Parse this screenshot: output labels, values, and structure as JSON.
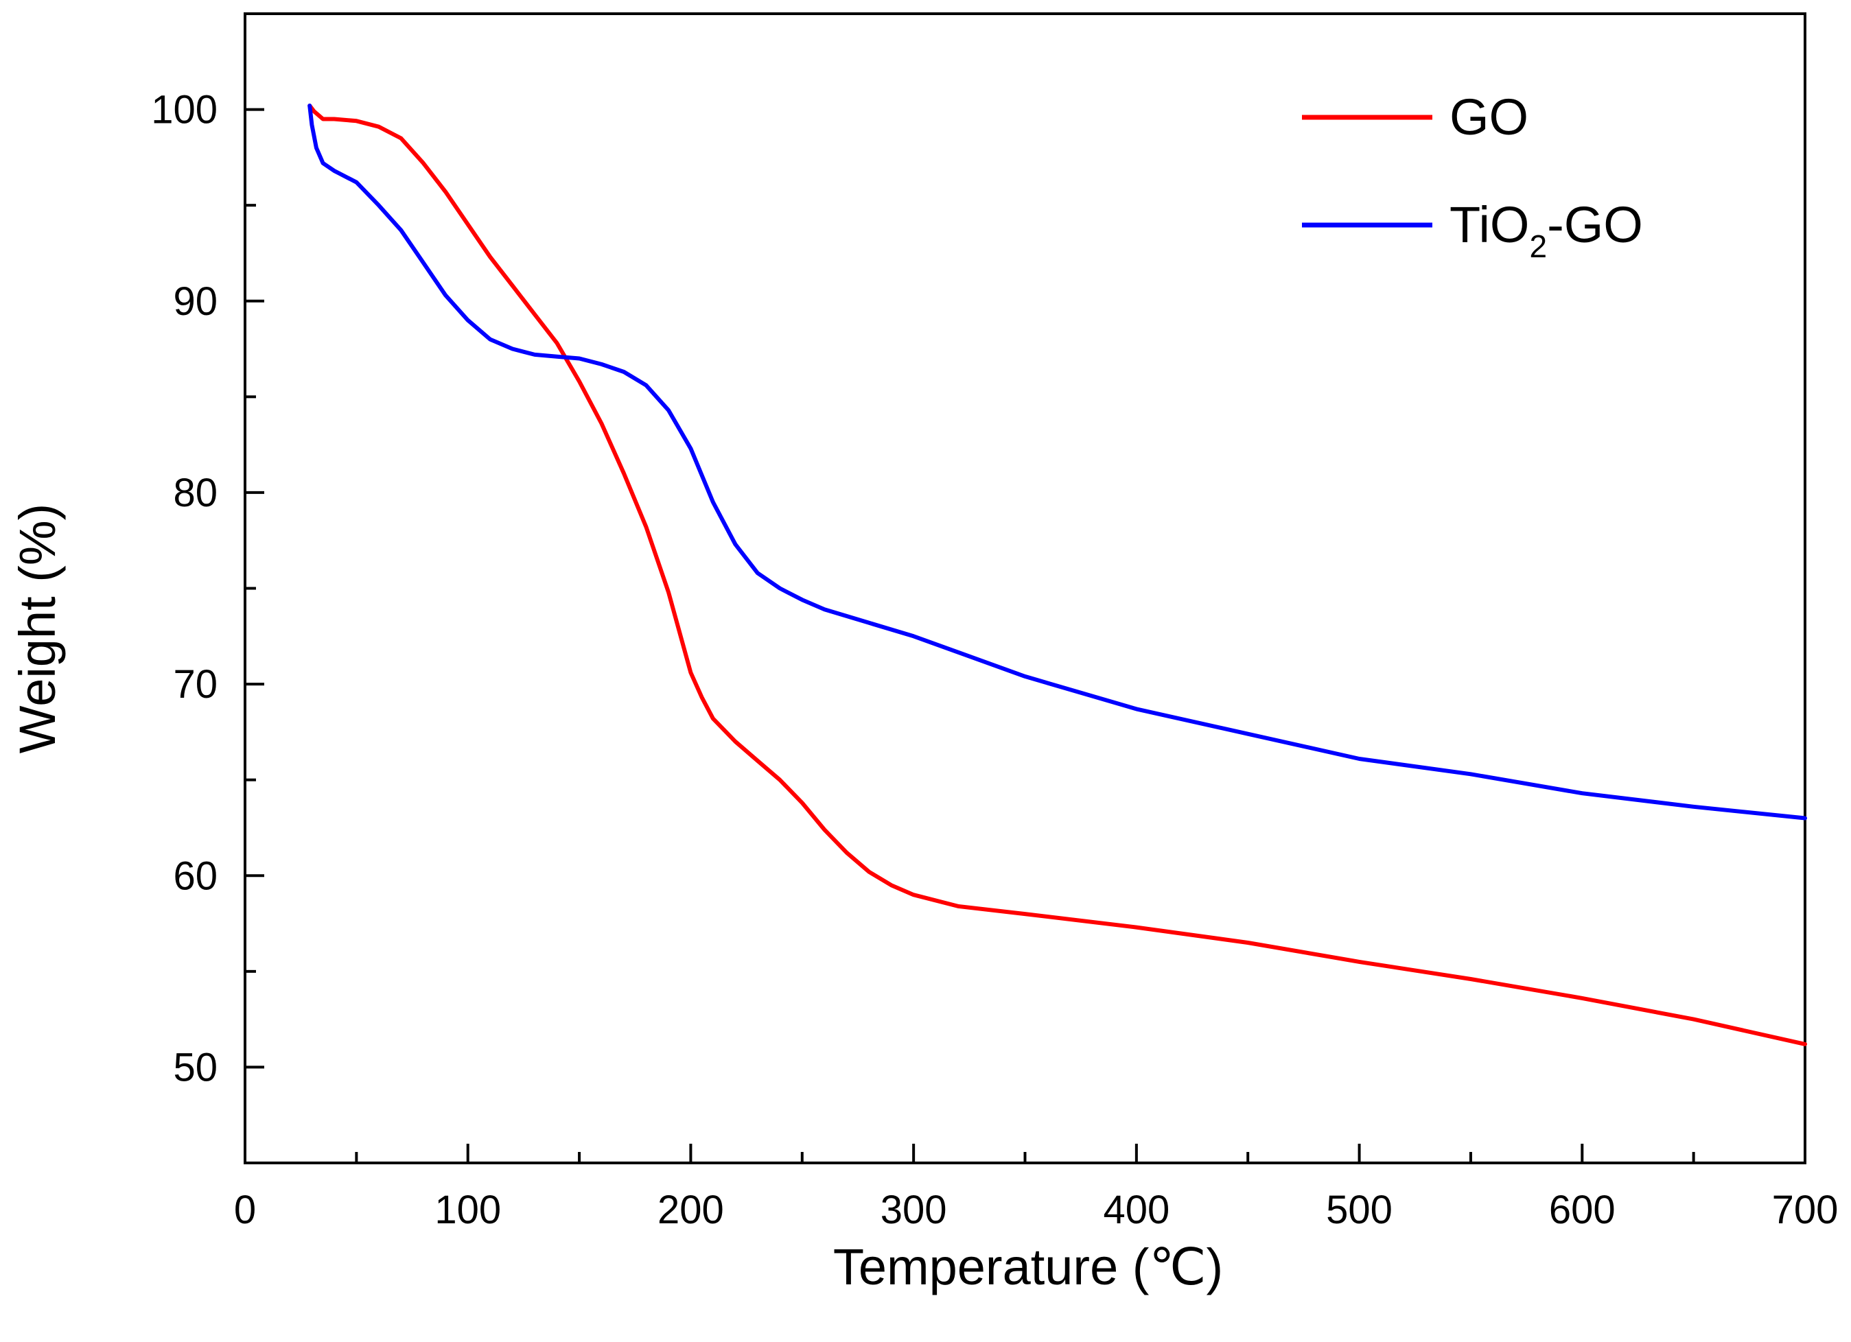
{
  "chart_data": {
    "type": "line",
    "title": "",
    "xlabel": "Temperature (℃)",
    "ylabel": "Weight (%)",
    "xlim": [
      0,
      700
    ],
    "ylim": [
      45,
      105
    ],
    "x_ticks": [
      0,
      100,
      200,
      300,
      400,
      500,
      600,
      700
    ],
    "y_ticks": [
      50,
      60,
      70,
      80,
      90,
      100
    ],
    "x_tick_labels": [
      "0",
      "100",
      "200",
      "300",
      "400",
      "500",
      "600",
      "700"
    ],
    "y_tick_labels": [
      "50",
      "60",
      "70",
      "80",
      "90",
      "100"
    ],
    "grid": false,
    "legend_position": "top-right",
    "series": [
      {
        "name": "GO",
        "legend_main": "GO",
        "color": "#ff0000",
        "points": [
          [
            29,
            100.2
          ],
          [
            31,
            99.9
          ],
          [
            35,
            99.5
          ],
          [
            40,
            99.5
          ],
          [
            50,
            99.4
          ],
          [
            60,
            99.1
          ],
          [
            70,
            98.5
          ],
          [
            80,
            97.2
          ],
          [
            90,
            95.7
          ],
          [
            100,
            94.0
          ],
          [
            110,
            92.3
          ],
          [
            120,
            90.8
          ],
          [
            130,
            89.3
          ],
          [
            140,
            87.8
          ],
          [
            150,
            85.8
          ],
          [
            160,
            83.6
          ],
          [
            170,
            81.0
          ],
          [
            180,
            78.2
          ],
          [
            190,
            74.8
          ],
          [
            200,
            70.6
          ],
          [
            205,
            69.3
          ],
          [
            210,
            68.2
          ],
          [
            220,
            67.0
          ],
          [
            230,
            66.0
          ],
          [
            240,
            65.0
          ],
          [
            250,
            63.8
          ],
          [
            260,
            62.4
          ],
          [
            270,
            61.2
          ],
          [
            280,
            60.2
          ],
          [
            290,
            59.5
          ],
          [
            300,
            59.0
          ],
          [
            320,
            58.4
          ],
          [
            350,
            58.0
          ],
          [
            400,
            57.3
          ],
          [
            450,
            56.5
          ],
          [
            500,
            55.5
          ],
          [
            550,
            54.6
          ],
          [
            600,
            53.6
          ],
          [
            650,
            52.5
          ],
          [
            700,
            51.2
          ]
        ]
      },
      {
        "name": "TiO2-GO",
        "legend_main": "TiO",
        "legend_sub": "2",
        "legend_suffix": "-GO",
        "color": "#0000ff",
        "points": [
          [
            29,
            100.2
          ],
          [
            30,
            99.2
          ],
          [
            32,
            98.0
          ],
          [
            35,
            97.2
          ],
          [
            40,
            96.8
          ],
          [
            50,
            96.2
          ],
          [
            60,
            95.0
          ],
          [
            70,
            93.7
          ],
          [
            80,
            92.0
          ],
          [
            90,
            90.3
          ],
          [
            100,
            89.0
          ],
          [
            110,
            88.0
          ],
          [
            120,
            87.5
          ],
          [
            130,
            87.2
          ],
          [
            140,
            87.1
          ],
          [
            150,
            87.0
          ],
          [
            160,
            86.7
          ],
          [
            170,
            86.3
          ],
          [
            180,
            85.6
          ],
          [
            190,
            84.3
          ],
          [
            200,
            82.3
          ],
          [
            210,
            79.5
          ],
          [
            220,
            77.3
          ],
          [
            230,
            75.8
          ],
          [
            240,
            75.0
          ],
          [
            250,
            74.4
          ],
          [
            260,
            73.9
          ],
          [
            280,
            73.2
          ],
          [
            300,
            72.5
          ],
          [
            350,
            70.4
          ],
          [
            400,
            68.7
          ],
          [
            450,
            67.4
          ],
          [
            500,
            66.1
          ],
          [
            550,
            65.3
          ],
          [
            600,
            64.3
          ],
          [
            650,
            63.6
          ],
          [
            700,
            63.0
          ]
        ]
      }
    ]
  }
}
